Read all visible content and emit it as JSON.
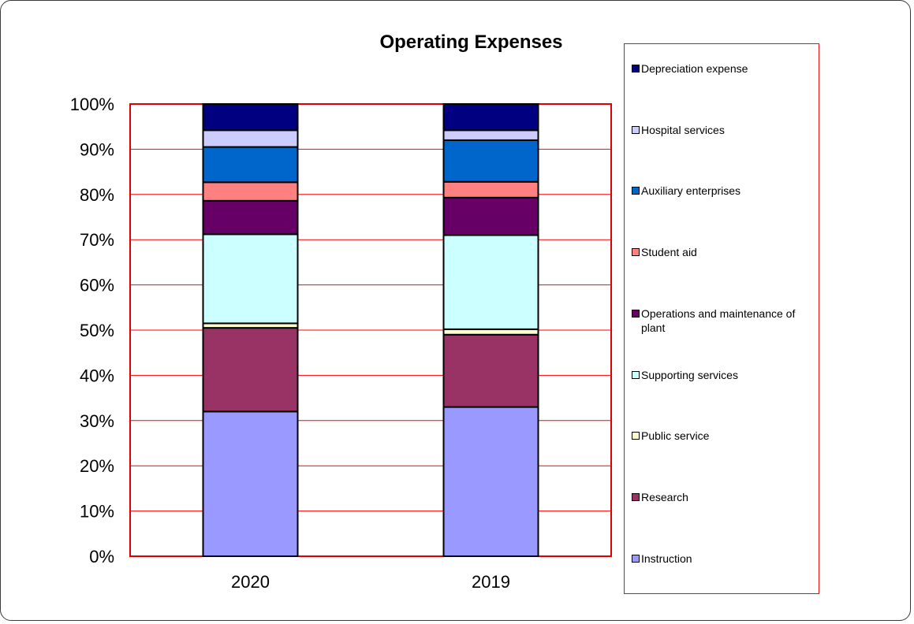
{
  "chart_data": {
    "type": "bar",
    "stacked": true,
    "percent": true,
    "title": "Operating Expenses",
    "categories": [
      "2020",
      "2019"
    ],
    "ylim": [
      0,
      100
    ],
    "yticks": [
      "0%",
      "10%",
      "20%",
      "30%",
      "40%",
      "50%",
      "60%",
      "70%",
      "80%",
      "90%",
      "100%"
    ],
    "grid": true,
    "legend_position": "right",
    "series": [
      {
        "name": "Instruction",
        "color": "#9999ff",
        "values": [
          32.0,
          33.0
        ]
      },
      {
        "name": "Research",
        "color": "#993366",
        "values": [
          18.5,
          16.0
        ]
      },
      {
        "name": "Public service",
        "color": "#ffffcc",
        "values": [
          1.0,
          1.2
        ]
      },
      {
        "name": "Supporting services",
        "color": "#ccffff",
        "values": [
          19.7,
          20.8
        ]
      },
      {
        "name": "Operations and maintenance of plant",
        "color": "#660066",
        "values": [
          7.4,
          8.3
        ]
      },
      {
        "name": "Student aid",
        "color": "#ff8080",
        "values": [
          4.1,
          3.5
        ]
      },
      {
        "name": "Auxiliary enterprises",
        "color": "#0066cc",
        "values": [
          7.8,
          9.2
        ]
      },
      {
        "name": "Hospital services",
        "color": "#ccccff",
        "values": [
          3.7,
          2.2
        ]
      },
      {
        "name": "Depreciation expense",
        "color": "#000080",
        "values": [
          5.8,
          5.8
        ]
      }
    ],
    "legend_order": [
      8,
      7,
      6,
      5,
      4,
      3,
      2,
      1,
      0
    ]
  }
}
